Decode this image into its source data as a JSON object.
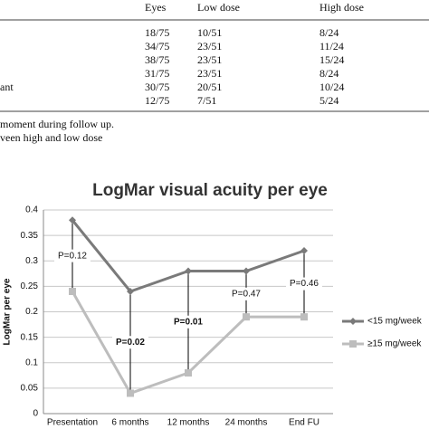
{
  "table": {
    "header": [
      "Eyes",
      "Low dose",
      "High dose"
    ],
    "row_labels": [
      null,
      null,
      null,
      null,
      "ant",
      null
    ],
    "rows": [
      [
        "18/75",
        "10/51",
        "8/24"
      ],
      [
        "34/75",
        "23/51",
        "11/24"
      ],
      [
        "38/75",
        "23/51",
        "15/24"
      ],
      [
        "31/75",
        "23/51",
        "8/24"
      ],
      [
        "30/75",
        "20/51",
        "10/24"
      ],
      [
        "12/75",
        "7/51",
        "5/24"
      ]
    ],
    "footnotes": [
      "moment during follow up.",
      "veen high and low dose"
    ]
  },
  "chart_data": {
    "type": "line",
    "title": "LogMar visual acuity per eye",
    "y_label": "LogMar per eye",
    "categories": [
      "Presentation",
      "6 months",
      "12 months",
      "24 months",
      "End FU"
    ],
    "series": [
      {
        "name": "<15 mg/week",
        "color": "#7a7a7a",
        "marker": "diamond",
        "values": [
          0.38,
          0.24,
          0.28,
          0.28,
          0.32
        ]
      },
      {
        "name": "≥15 mg/week",
        "color": "#bdbdbd",
        "marker": "square",
        "values": [
          0.24,
          0.04,
          0.08,
          0.19,
          0.19
        ]
      }
    ],
    "p_values": [
      "P=0.12",
      "P=0.02",
      "P=0.01",
      "P=0.47",
      "P=0.46"
    ],
    "p_bold": [
      false,
      true,
      true,
      false,
      false
    ],
    "ylim": [
      0,
      0.4
    ],
    "yticks": [
      0,
      0.05,
      0.1,
      0.15,
      0.2,
      0.25,
      0.3,
      0.35,
      0.4
    ],
    "grid": true,
    "legend": "right"
  }
}
